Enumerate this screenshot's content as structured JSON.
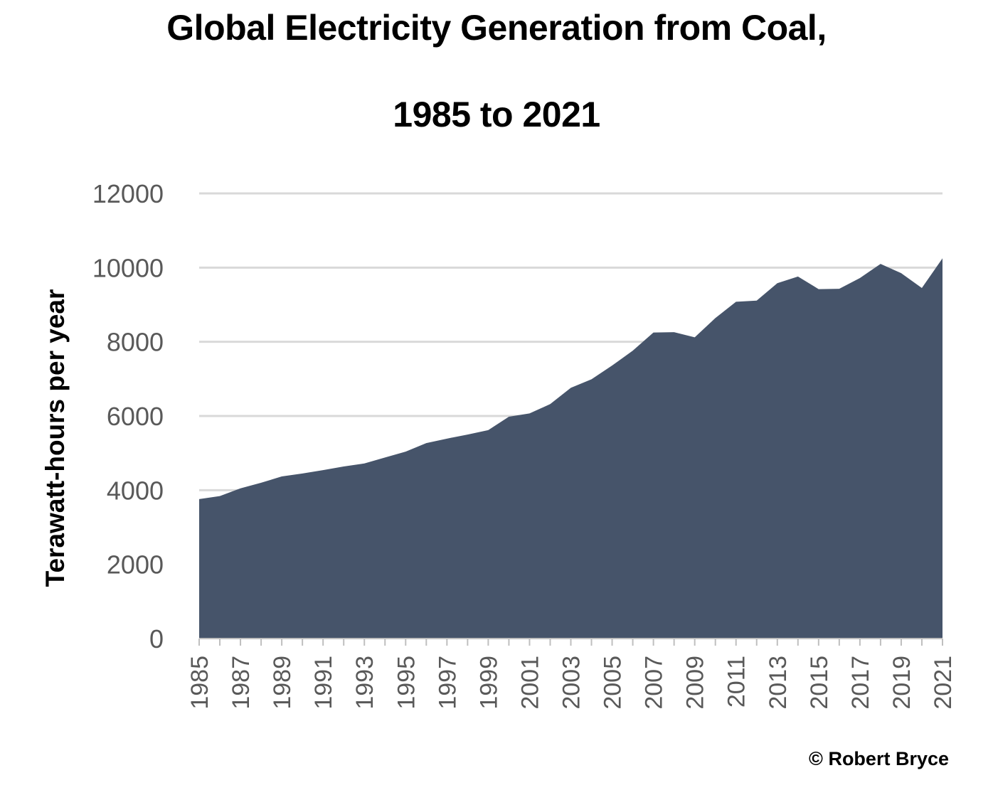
{
  "chart_data": {
    "type": "area",
    "title_line1": "Global Electricity Generation from Coal,",
    "title_line2": "1985 to 2021",
    "ylabel": "Terawatt-hours per year",
    "xlabel": "",
    "ylim": [
      0,
      12000
    ],
    "yticks": [
      0,
      2000,
      4000,
      6000,
      8000,
      10000,
      12000
    ],
    "xtick_labels": [
      "1985",
      "1987",
      "1989",
      "1991",
      "1993",
      "1995",
      "1997",
      "1999",
      "2001",
      "2003",
      "2005",
      "2007",
      "2009",
      "2011",
      "2013",
      "2015",
      "2017",
      "2019",
      "2021"
    ],
    "grid": "horizontal",
    "x": [
      1985,
      1986,
      1987,
      1988,
      1989,
      1990,
      1991,
      1992,
      1993,
      1994,
      1995,
      1996,
      1997,
      1998,
      1999,
      2000,
      2001,
      2002,
      2003,
      2004,
      2005,
      2006,
      2007,
      2008,
      2009,
      2010,
      2011,
      2012,
      2013,
      2014,
      2015,
      2016,
      2017,
      2018,
      2019,
      2020,
      2021
    ],
    "series": [
      {
        "values": [
          3760,
          3840,
          4050,
          4200,
          4370,
          4450,
          4540,
          4640,
          4720,
          4880,
          5040,
          5270,
          5390,
          5500,
          5620,
          5980,
          6070,
          6320,
          6760,
          6990,
          7360,
          7760,
          8250,
          8260,
          8120,
          8640,
          9080,
          9110,
          9580,
          9760,
          9420,
          9430,
          9720,
          10100,
          9850,
          9450,
          10250
        ],
        "color": "#46546a"
      }
    ],
    "grid_color": "#d9d9d9",
    "axis_color": "#bfbfbf",
    "tick_text_color": "#595959"
  },
  "credit": "© Robert Bryce"
}
